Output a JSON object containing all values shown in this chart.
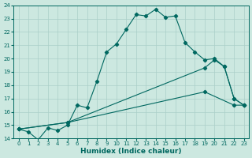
{
  "xlabel": "Humidex (Indice chaleur)",
  "ylabel": "",
  "xlim": [
    -0.5,
    23.5
  ],
  "ylim": [
    14,
    24
  ],
  "xticks": [
    0,
    1,
    2,
    3,
    4,
    5,
    6,
    7,
    8,
    9,
    10,
    11,
    12,
    13,
    14,
    15,
    16,
    17,
    18,
    19,
    20,
    21,
    22,
    23
  ],
  "yticks": [
    14,
    15,
    16,
    17,
    18,
    19,
    20,
    21,
    22,
    23,
    24
  ],
  "bg_color": "#cce8e0",
  "grid_color": "#aacfc8",
  "line_color": "#006860",
  "line1_x": [
    0,
    1,
    2,
    3,
    4,
    5,
    6,
    7,
    8,
    9,
    10,
    11,
    12,
    13,
    14,
    15,
    16,
    17,
    18,
    19,
    20,
    21,
    22,
    23
  ],
  "line1_y": [
    14.7,
    14.5,
    13.9,
    14.8,
    14.6,
    15.0,
    16.5,
    16.3,
    18.3,
    20.5,
    21.1,
    22.2,
    23.3,
    23.2,
    23.7,
    23.1,
    23.2,
    21.2,
    20.5,
    19.9,
    20.0,
    19.4,
    17.0,
    16.5
  ],
  "line2_x": [
    0,
    5,
    19,
    20,
    21,
    22,
    23
  ],
  "line2_y": [
    14.7,
    15.2,
    19.3,
    19.9,
    19.4,
    17.0,
    16.5
  ],
  "line3_x": [
    0,
    5,
    19,
    22,
    23
  ],
  "line3_y": [
    14.7,
    15.2,
    17.5,
    16.5,
    16.5
  ]
}
